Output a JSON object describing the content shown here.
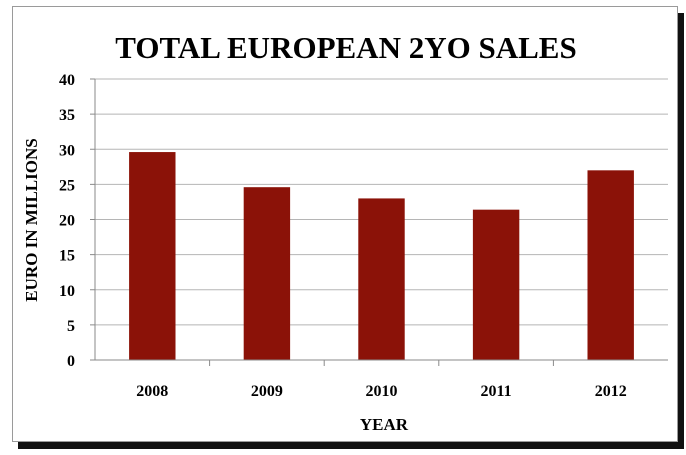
{
  "chart_data": {
    "type": "bar",
    "title": "TOTAL EUROPEAN 2YO SALES",
    "xlabel": "YEAR",
    "ylabel": "EURO IN MILLIONS",
    "categories": [
      "2008",
      "2009",
      "2010",
      "2011",
      "2012"
    ],
    "values": [
      29.6,
      24.6,
      23.0,
      21.4,
      27.0
    ],
    "ylim": [
      0,
      40
    ],
    "yticks": [
      0,
      5,
      10,
      15,
      20,
      25,
      30,
      35,
      40
    ],
    "grid": true,
    "legend": "none",
    "bar_color": "#8b1208",
    "grid_color": "#b5b5b5"
  }
}
